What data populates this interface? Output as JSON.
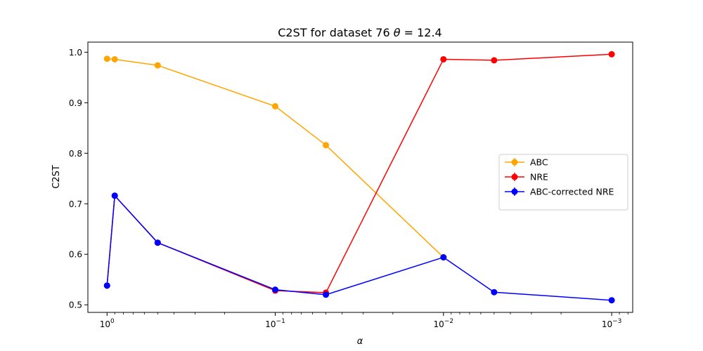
{
  "chart_data": {
    "type": "line",
    "title": "C2ST for dataset 76 θ = 12.4",
    "title_prefix": "C2ST for dataset 76 ",
    "title_symbol": "θ",
    "title_suffix": " =  12.4",
    "xlabel": "α",
    "ylabel": "C2ST",
    "x_scale": "log",
    "x_axis_reversed": true,
    "xlim": [
      1.3,
      0.00075
    ],
    "ylim": [
      0.485,
      1.02
    ],
    "x_ticks": [
      {
        "value": 1,
        "base": "10",
        "exp": "0"
      },
      {
        "value": 0.1,
        "base": "10",
        "exp": "−1"
      },
      {
        "value": 0.01,
        "base": "10",
        "exp": "−2"
      },
      {
        "value": 0.001,
        "base": "10",
        "exp": "−3"
      }
    ],
    "y_ticks": [
      {
        "value": 0.5,
        "label": "0.5"
      },
      {
        "value": 0.6,
        "label": "0.6"
      },
      {
        "value": 0.7,
        "label": "0.7"
      },
      {
        "value": 0.8,
        "label": "0.8"
      },
      {
        "value": 0.9,
        "label": "0.9"
      },
      {
        "value": 1.0,
        "label": "1.0"
      }
    ],
    "x": [
      1.0,
      0.9,
      0.5,
      0.1,
      0.05,
      0.01,
      0.005,
      0.001
    ],
    "series": [
      {
        "name": "ABC",
        "color": "#ffa500",
        "values": [
          0.987,
          0.986,
          0.974,
          0.893,
          0.816,
          0.594,
          null,
          null
        ]
      },
      {
        "name": "NRE",
        "color": "#ff0000",
        "values": [
          0.538,
          0.716,
          0.623,
          0.528,
          0.524,
          0.986,
          0.984,
          0.996
        ]
      },
      {
        "name": "ABC-corrected NRE",
        "color": "#0000ff",
        "values": [
          0.538,
          0.716,
          0.623,
          0.53,
          0.52,
          0.594,
          0.525,
          0.509
        ]
      }
    ],
    "legend_placement": "center-right",
    "grid": false
  }
}
